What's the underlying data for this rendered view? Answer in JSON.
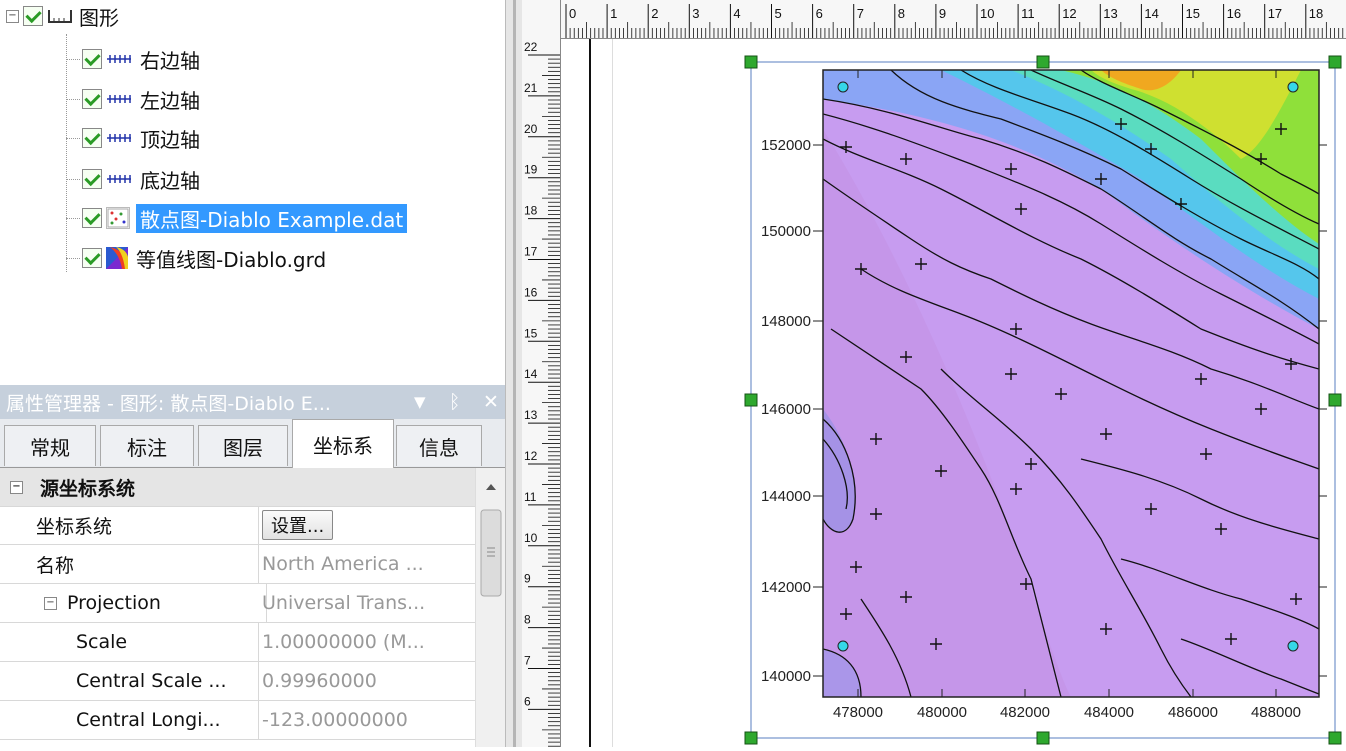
{
  "tree": {
    "root_label": "图形",
    "items": [
      {
        "label": "右边轴",
        "icon": "axis-icon"
      },
      {
        "label": "左边轴",
        "icon": "axis-icon"
      },
      {
        "label": "顶边轴",
        "icon": "axis-icon"
      },
      {
        "label": "底边轴",
        "icon": "axis-icon"
      },
      {
        "label": "散点图-Diablo Example.dat",
        "icon": "scatter-plot-icon",
        "selected": true
      },
      {
        "label": "等值线图-Diablo.grd",
        "icon": "contour-map-icon"
      }
    ]
  },
  "property_manager": {
    "title": "属性管理器 - 图形: 散点图-Diablo E...",
    "controls": {
      "dropdown": "▼",
      "pin": "ᛒ",
      "close": "✕"
    },
    "tabs": [
      "常规",
      "标注",
      "图层",
      "坐标系",
      "信息"
    ],
    "active_tab": "坐标系",
    "category": "源坐标系统",
    "collapse_sign": "−",
    "rows": [
      {
        "name": "坐标系统",
        "value": "设置...",
        "is_button": true
      },
      {
        "name": "名称",
        "value": "North America ..."
      },
      {
        "name": "Projection",
        "value": "Universal Trans...",
        "expandable": true
      },
      {
        "name": "Scale",
        "value": "1.00000000 (M..."
      },
      {
        "name": "Central Scale ...",
        "value": "0.99960000"
      },
      {
        "name": "Central Longi...",
        "value": "-123.00000000"
      }
    ]
  },
  "rulers": {
    "horizontal": [
      "0",
      "1",
      "2",
      "3",
      "4",
      "5",
      "6",
      "7",
      "8",
      "9",
      "10",
      "11",
      "12",
      "13",
      "14",
      "15",
      "16",
      "17",
      "18",
      "1"
    ],
    "vertical": [
      "22",
      "21",
      "20",
      "19",
      "18",
      "17",
      "16",
      "15",
      "14",
      "13",
      "12",
      "11",
      "10",
      "9",
      "8",
      "7",
      "6"
    ]
  },
  "map": {
    "x_ticks": [
      "478000",
      "480000",
      "482000",
      "484000",
      "486000",
      "488000"
    ],
    "y_ticks": [
      "152000",
      "150000",
      "148000",
      "146000",
      "144000",
      "142000",
      "140000"
    ],
    "colors": {
      "low": "#c89bf0",
      "mid_low": "#9fb9f5",
      "mid": "#56d6e6",
      "mid_high": "#8fe036",
      "high": "#f2a21b",
      "selection": "#2ea82e",
      "handle_corner": "#35d7e8"
    }
  }
}
